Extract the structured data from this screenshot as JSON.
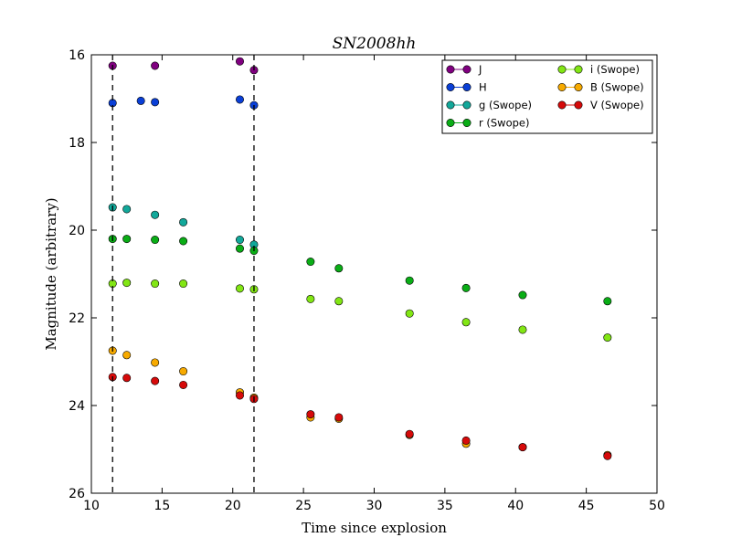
{
  "chart_data": {
    "type": "scatter",
    "title": "SN2008hh",
    "xlabel": "Time since explosion",
    "ylabel": "Magnitude (arbitrary)",
    "xlim": [
      10,
      50
    ],
    "ylim": [
      26,
      16
    ],
    "y_inverted": true,
    "xticks": [
      10,
      15,
      20,
      25,
      30,
      35,
      40,
      45,
      50
    ],
    "yticks": [
      16,
      18,
      20,
      22,
      24,
      26
    ],
    "grid": false,
    "legend_position": "top-right",
    "vertical_lines": [
      11.5,
      21.5
    ],
    "series": [
      {
        "name": "J",
        "color": "#800080",
        "x": [
          11.5,
          14.5,
          20.5,
          21.5
        ],
        "y": [
          16.25,
          16.25,
          16.15,
          16.35
        ]
      },
      {
        "name": "H",
        "color": "#0a3fd6",
        "x": [
          11.5,
          13.5,
          14.5,
          20.5,
          21.5
        ],
        "y": [
          17.1,
          17.05,
          17.08,
          17.02,
          17.15
        ]
      },
      {
        "name": "g (Swope)",
        "color": "#12a89a",
        "x": [
          11.5,
          12.5,
          14.5,
          16.5,
          20.5,
          21.5
        ],
        "y": [
          19.48,
          19.52,
          19.65,
          19.82,
          20.22,
          20.33
        ]
      },
      {
        "name": "r (Swope)",
        "color": "#0aad16",
        "x": [
          11.5,
          12.5,
          14.5,
          16.5,
          20.5,
          21.5,
          25.5,
          27.5,
          32.5,
          36.5,
          40.5,
          46.5
        ],
        "y": [
          20.2,
          20.2,
          20.22,
          20.25,
          20.42,
          20.47,
          20.72,
          20.87,
          21.15,
          21.32,
          21.48,
          21.62
        ]
      },
      {
        "name": "i (Swope)",
        "color": "#82e614",
        "x": [
          11.5,
          12.5,
          14.5,
          16.5,
          20.5,
          21.5,
          25.5,
          27.5,
          32.5,
          36.5,
          40.5,
          46.5
        ],
        "y": [
          21.22,
          21.2,
          21.22,
          21.22,
          21.33,
          21.35,
          21.57,
          21.62,
          21.9,
          22.1,
          22.27,
          22.45
        ]
      },
      {
        "name": "B (Swope)",
        "color": "#f7aa00",
        "x": [
          11.5,
          12.5,
          14.5,
          16.5,
          20.5,
          21.5,
          25.5,
          27.5,
          32.5,
          36.5,
          40.5,
          46.5
        ],
        "y": [
          22.75,
          22.85,
          23.02,
          23.22,
          23.7,
          23.82,
          24.27,
          24.3,
          24.67,
          24.87,
          24.95,
          25.13
        ]
      },
      {
        "name": "V (Swope)",
        "color": "#d60a0a",
        "x": [
          11.5,
          12.5,
          14.5,
          16.5,
          20.5,
          21.5,
          25.5,
          27.5,
          32.5,
          36.5,
          40.5,
          46.5
        ],
        "y": [
          23.35,
          23.37,
          23.44,
          23.53,
          23.77,
          23.85,
          24.2,
          24.27,
          24.65,
          24.8,
          24.95,
          25.15
        ]
      }
    ]
  }
}
